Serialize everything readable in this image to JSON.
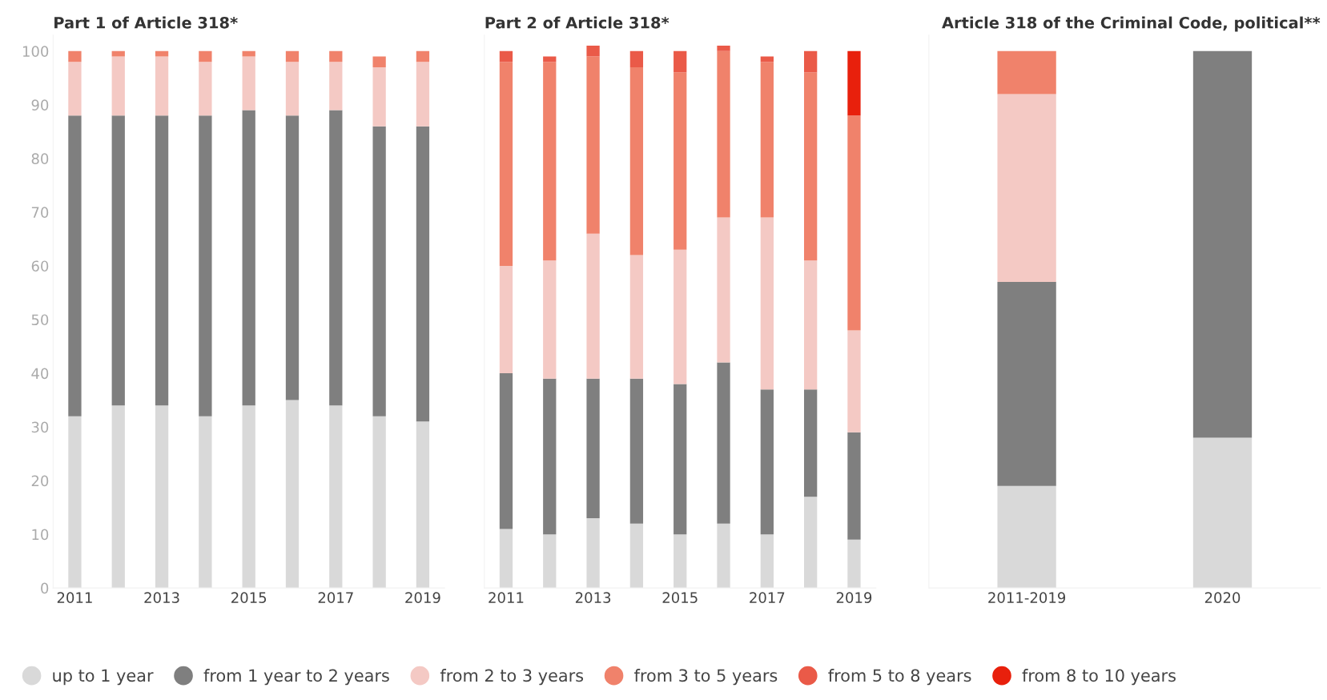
{
  "chart_data": [
    {
      "type": "bar",
      "stacked": true,
      "title": "Part 1 of Article 318*",
      "categories": [
        "2011",
        null,
        "2013",
        null,
        "2015",
        null,
        "2017",
        null,
        "2019"
      ],
      "ylim": [
        0,
        103
      ],
      "yticks": [
        0,
        10,
        20,
        30,
        40,
        50,
        60,
        70,
        80,
        90,
        100
      ],
      "legend": "bottom",
      "series": [
        {
          "name": "up to 1 year",
          "color": "#d9d9d9",
          "values": [
            32,
            34,
            34,
            32,
            34,
            35,
            34,
            32,
            31
          ]
        },
        {
          "name": "from 1 year to 2 years",
          "color": "#7f7f7f",
          "values": [
            56,
            54,
            54,
            56,
            55,
            53,
            55,
            54,
            55
          ]
        },
        {
          "name": "from 2 to 3 years",
          "color": "#f4c9c4",
          "values": [
            10,
            11,
            11,
            10,
            10,
            10,
            9,
            11,
            12
          ]
        },
        {
          "name": "from 3 to 5 years",
          "color": "#f0826b",
          "values": [
            2,
            1,
            1,
            2,
            1,
            2,
            2,
            2,
            2
          ]
        },
        {
          "name": "from 5 to 8 years",
          "color": "#ea5a48",
          "values": [
            0,
            0,
            0,
            0,
            0,
            0,
            0,
            0,
            0
          ]
        },
        {
          "name": "from 8 to 10 years",
          "color": "#e8200c",
          "values": [
            0,
            0,
            0,
            0,
            0,
            0,
            0,
            0,
            0
          ]
        }
      ]
    },
    {
      "type": "bar",
      "stacked": true,
      "title": "Part 2 of Article 318*",
      "categories": [
        "2011",
        null,
        "2013",
        null,
        "2015",
        null,
        "2017",
        null,
        "2019"
      ],
      "ylim": [
        0,
        103
      ],
      "tick_labels": "x",
      "series": [
        {
          "color": "#d9d9d9",
          "values": [
            11,
            10,
            13,
            12,
            10,
            12,
            10,
            17,
            9
          ]
        },
        {
          "color": "#7f7f7f",
          "values": [
            29,
            29,
            26,
            27,
            28,
            30,
            27,
            20,
            20
          ]
        },
        {
          "color": "#f4c9c4",
          "values": [
            20,
            22,
            27,
            23,
            25,
            27,
            32,
            24,
            19
          ]
        },
        {
          "color": "#f0826b",
          "values": [
            38,
            37,
            33,
            35,
            33,
            31,
            29,
            35,
            40
          ]
        },
        {
          "color": "#ea5a48",
          "values": [
            2,
            1,
            2,
            3,
            4,
            1,
            1,
            4,
            0
          ]
        },
        {
          "color": "#e8200c",
          "values": [
            0,
            0,
            0,
            0,
            0,
            0,
            0,
            0,
            12
          ]
        }
      ]
    },
    {
      "type": "bar",
      "stacked": true,
      "title": "Article 318 of the Criminal Code, political**",
      "categories": [
        "2011-2019",
        "2020"
      ],
      "ylim": [
        0,
        103
      ],
      "tick_labels": "x",
      "series": [
        {
          "color": "#d9d9d9",
          "values": [
            19,
            28
          ]
        },
        {
          "color": "#7f7f7f",
          "values": [
            38,
            72
          ]
        },
        {
          "color": "#f4c9c4",
          "values": [
            35,
            0
          ]
        },
        {
          "color": "#f0826b",
          "values": [
            8,
            0
          ]
        },
        {
          "color": "#ea5a48",
          "values": [
            0,
            0
          ]
        },
        {
          "color": "#e8200c",
          "values": [
            0,
            0
          ]
        }
      ]
    }
  ]
}
